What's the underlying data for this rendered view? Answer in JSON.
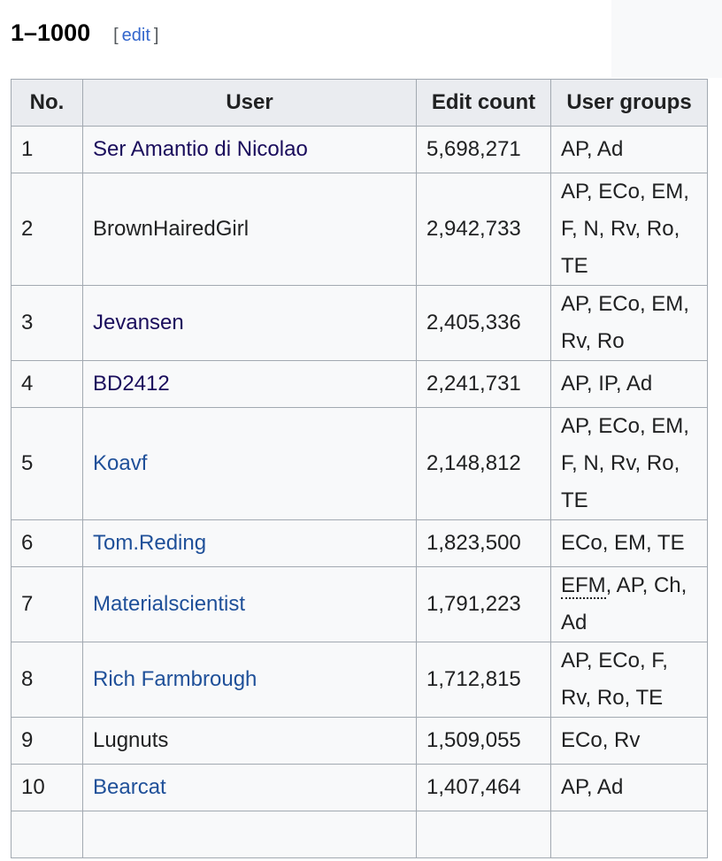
{
  "heading": {
    "title": "1–1000",
    "edit_open": "[",
    "edit_label": "edit",
    "edit_close": "]"
  },
  "table": {
    "columns": [
      "No.",
      "User",
      "Edit count",
      "User groups"
    ],
    "rows": [
      {
        "no": "1",
        "user": "Ser Amantio di Nicolao",
        "link": "visited",
        "edits": "5,698,271",
        "groups": "AP, Ad"
      },
      {
        "no": "2",
        "user": "BrownHairedGirl",
        "link": "none",
        "edits": "2,942,733",
        "groups": "AP, ECo, EM, F, N, Rv, Ro, TE"
      },
      {
        "no": "3",
        "user": "Jevansen",
        "link": "visited",
        "edits": "2,405,336",
        "groups": "AP, ECo, EM, Rv, Ro"
      },
      {
        "no": "4",
        "user": "BD2412",
        "link": "visited",
        "edits": "2,241,731",
        "groups": "AP, IP, Ad"
      },
      {
        "no": "5",
        "user": "Koavf",
        "link": "link",
        "edits": "2,148,812",
        "groups": "AP, ECo, EM, F, N, Rv, Ro, TE"
      },
      {
        "no": "6",
        "user": "Tom.Reding",
        "link": "link",
        "edits": "1,823,500",
        "groups": "ECo, EM, TE"
      },
      {
        "no": "7",
        "user": "Materialscientist",
        "link": "link",
        "edits": "1,791,223",
        "groups_abbr": "EFM",
        "groups_rest": ", AP, Ch, Ad"
      },
      {
        "no": "8",
        "user": "Rich Farmbrough",
        "link": "link",
        "edits": "1,712,815",
        "groups": "AP, ECo, F, Rv, Ro, TE"
      },
      {
        "no": "9",
        "user": "Lugnuts",
        "link": "none",
        "edits": "1,509,055",
        "groups": "ECo, Rv"
      },
      {
        "no": "10",
        "user": "Bearcat",
        "link": "link",
        "edits": "1,407,464",
        "groups": "AP, Ad"
      }
    ]
  }
}
